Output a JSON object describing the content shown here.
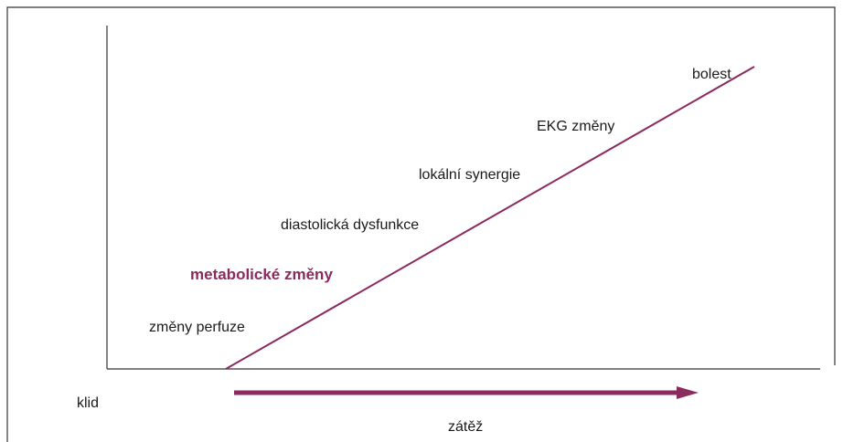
{
  "stages": [
    "změny perfuze",
    "metabolické změny",
    "diastolická dysfunkce",
    "lokální synergie",
    "EKG změny",
    "bolest"
  ],
  "axis": {
    "start": "klid",
    "end": "zátěž"
  }
}
